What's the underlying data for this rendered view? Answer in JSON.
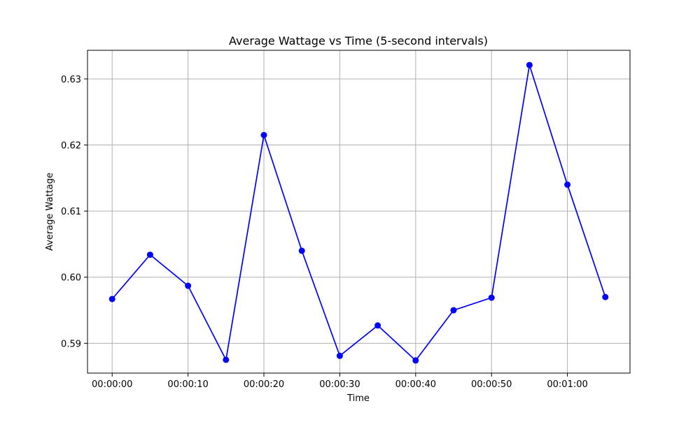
{
  "chart_data": {
    "type": "line",
    "title": "Average Wattage vs Time (5-second intervals)",
    "xlabel": "Time",
    "ylabel": "Average Wattage",
    "x_unit": "time (hh:mm:ss)",
    "x": [
      "00:00:00",
      "00:00:05",
      "00:00:10",
      "00:00:15",
      "00:00:20",
      "00:00:25",
      "00:00:30",
      "00:00:35",
      "00:00:40",
      "00:00:45",
      "00:00:50",
      "00:00:55",
      "00:01:00",
      "00:01:05"
    ],
    "series": [
      {
        "values": [
          0.5967,
          0.6034,
          0.5987,
          0.5875,
          0.6215,
          0.604,
          0.5881,
          0.5927,
          0.5874,
          0.595,
          0.5969,
          0.6321,
          0.614,
          0.597
        ],
        "color": "#0000ff",
        "marker": "circle"
      }
    ],
    "xlim": [
      "-00:00:03.25",
      "00:01:08.25"
    ],
    "ylim": [
      0.58549,
      0.63433
    ],
    "x_ticks": [
      "00:00:00",
      "00:00:10",
      "00:00:20",
      "00:00:30",
      "00:00:40",
      "00:00:50",
      "00:01:00"
    ],
    "y_ticks": [
      0.59,
      0.6,
      0.61,
      0.62,
      0.63
    ],
    "y_tick_labels": [
      "0.59",
      "0.60",
      "0.61",
      "0.62",
      "0.63"
    ],
    "grid": true,
    "grid_color": "#b0b0b0",
    "legend": "none"
  }
}
